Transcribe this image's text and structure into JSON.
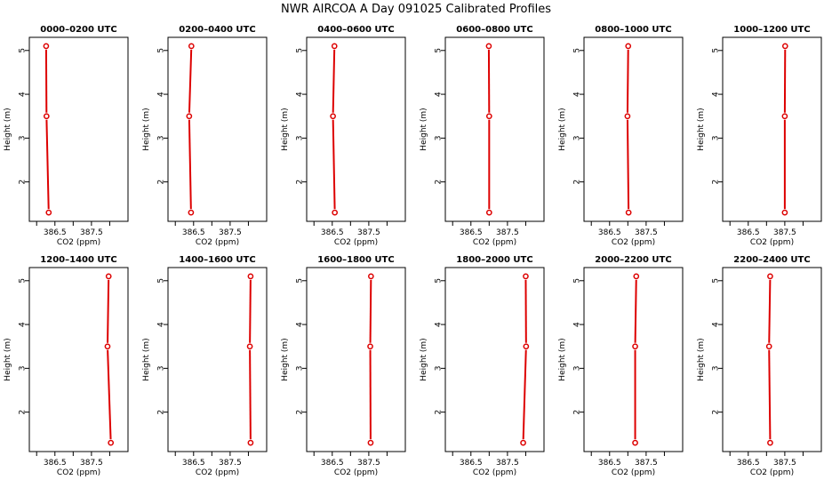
{
  "figure": {
    "title": "NWR AIRCOA A  Day 091025  Calibrated Profiles"
  },
  "chart_data": {
    "type": "line",
    "xlabel": "CO2 (ppm)",
    "ylabel": "Height (m)",
    "xlim": [
      385.8,
      388.5
    ],
    "ylim": [
      1.1,
      5.3
    ],
    "xticks": [
      386,
      386.5,
      387,
      387.5,
      388
    ],
    "xtick_labels": [
      "",
      "386.5",
      "",
      "387.5",
      ""
    ],
    "yticks": [
      2,
      3,
      4,
      5
    ],
    "ytick_labels": [
      "2",
      "3",
      "4",
      "5"
    ],
    "grid": false,
    "legend": "none",
    "line_color": "#dd0000",
    "panels": [
      {
        "title": "0000–0200 UTC",
        "x": [
          386.33,
          386.27,
          386.26
        ],
        "y": [
          1.3,
          3.5,
          5.1
        ]
      },
      {
        "title": "0200–0400 UTC",
        "x": [
          386.43,
          386.38,
          386.44
        ],
        "y": [
          1.3,
          3.5,
          5.1
        ]
      },
      {
        "title": "0400–0600 UTC",
        "x": [
          386.57,
          386.52,
          386.56
        ],
        "y": [
          1.3,
          3.5,
          5.1
        ]
      },
      {
        "title": "0600–0800 UTC",
        "x": [
          387.0,
          387.0,
          386.99
        ],
        "y": [
          1.3,
          3.5,
          5.1
        ]
      },
      {
        "title": "0800–1000 UTC",
        "x": [
          387.02,
          386.99,
          387.01
        ],
        "y": [
          1.3,
          3.5,
          5.1
        ]
      },
      {
        "title": "1000–1200 UTC",
        "x": [
          387.5,
          387.5,
          387.51
        ],
        "y": [
          1.3,
          3.5,
          5.1
        ]
      },
      {
        "title": "1200–1400 UTC",
        "x": [
          388.03,
          387.94,
          387.97
        ],
        "y": [
          1.3,
          3.5,
          5.1
        ]
      },
      {
        "title": "1400–1600 UTC",
        "x": [
          388.06,
          388.04,
          388.06
        ],
        "y": [
          1.3,
          3.5,
          5.1
        ]
      },
      {
        "title": "1600–1800 UTC",
        "x": [
          387.55,
          387.54,
          387.56
        ],
        "y": [
          1.3,
          3.5,
          5.1
        ]
      },
      {
        "title": "1800–2000 UTC",
        "x": [
          387.93,
          388.01,
          388.0
        ],
        "y": [
          1.3,
          3.5,
          5.1
        ]
      },
      {
        "title": "2000–2200 UTC",
        "x": [
          387.2,
          387.2,
          387.23
        ],
        "y": [
          1.3,
          3.5,
          5.1
        ]
      },
      {
        "title": "2200–2400 UTC",
        "x": [
          387.1,
          387.07,
          387.1
        ],
        "y": [
          1.3,
          3.5,
          5.1
        ]
      }
    ]
  }
}
